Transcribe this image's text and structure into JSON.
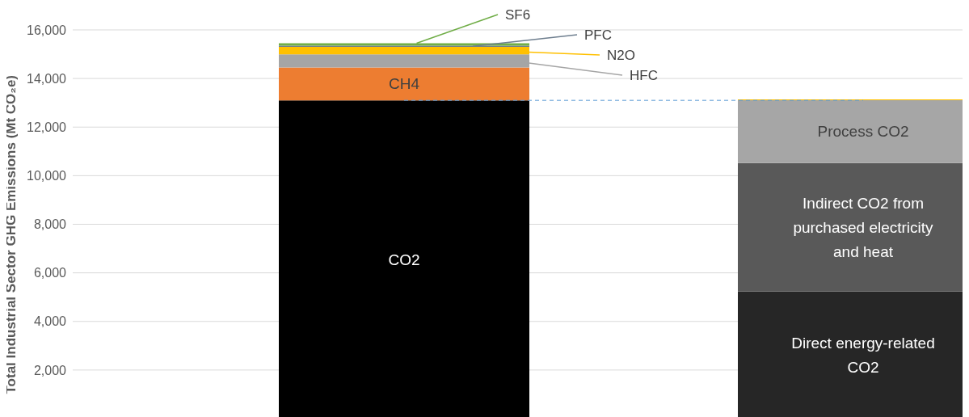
{
  "chart_data": {
    "type": "bar",
    "ylabel": "Total Industrial Sector GHG Emissions (Mt CO₂e)",
    "categories": [
      null,
      null
    ],
    "stacked": true,
    "series": [
      {
        "name": "CO2",
        "color": "#000000",
        "values": [
          13100,
          null
        ]
      },
      {
        "name": "CH4",
        "color": "#ed7d31",
        "values": [
          1350,
          null
        ]
      },
      {
        "name": "HFC",
        "color": "#a5a5a5",
        "values": [
          540,
          null
        ]
      },
      {
        "name": "N2O",
        "color": "#ffc000",
        "values": [
          310,
          null
        ]
      },
      {
        "name": "PFC",
        "color": "#6f7f8f",
        "values": [
          50,
          null
        ]
      },
      {
        "name": "SF6",
        "color": "#70ad47",
        "values": [
          100,
          null
        ]
      },
      {
        "name": "Direct energy-related CO2",
        "color": "#262626",
        "values": [
          null,
          5240
        ]
      },
      {
        "name": "Indirect CO2 from purchased electricity and heat",
        "color": "#595959",
        "values": [
          null,
          5280
        ]
      },
      {
        "name": "Process CO2",
        "color": "#a6a6a6",
        "values": [
          null,
          2590
        ]
      },
      {
        "color": "#ffc000",
        "values": [
          null,
          30
        ]
      }
    ],
    "ylim": [
      0,
      16000
    ],
    "yticks": [
      {
        "value": 2000,
        "label": "2,000"
      },
      {
        "value": 4000,
        "label": "4,000"
      },
      {
        "value": 6000,
        "label": "6,000"
      },
      {
        "value": 8000,
        "label": "8,000"
      },
      {
        "value": 10000,
        "label": "10,000"
      },
      {
        "value": 12000,
        "label": "12,000"
      },
      {
        "value": 14000,
        "label": "14,000"
      },
      {
        "value": 16000,
        "label": "16,000"
      }
    ],
    "grid": "y",
    "legend": false,
    "tick_labels": "y",
    "ref_lines": [
      {
        "axis": "y",
        "value": 13100,
        "color": "#5b9bd5",
        "line_style": "dashed"
      }
    ]
  }
}
